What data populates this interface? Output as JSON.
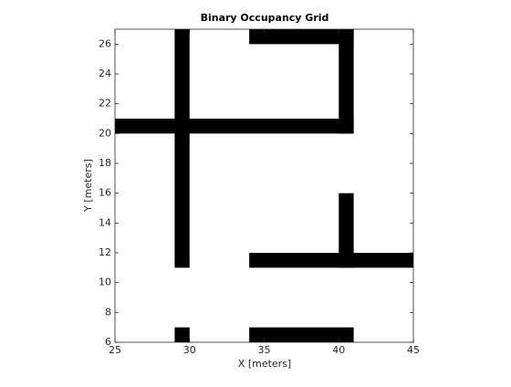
{
  "chart_data": {
    "type": "occupancy",
    "title": "Binary Occupancy Grid",
    "xlabel": "X [meters]",
    "ylabel": "Y [meters]",
    "xlim": [
      25,
      45
    ],
    "ylim": [
      6,
      27
    ],
    "xticks": [
      25,
      30,
      35,
      40,
      45
    ],
    "yticks": [
      6,
      8,
      10,
      12,
      14,
      16,
      18,
      20,
      22,
      24,
      26
    ],
    "color": "#000000",
    "occupied": [
      {
        "x": [
          29,
          30
        ],
        "y": [
          11,
          27
        ]
      },
      {
        "x": [
          25,
          41
        ],
        "y": [
          20,
          21
        ]
      },
      {
        "x": [
          34,
          41
        ],
        "y": [
          26,
          27
        ]
      },
      {
        "x": [
          40,
          41
        ],
        "y": [
          20,
          27
        ]
      },
      {
        "x": [
          40,
          41
        ],
        "y": [
          11,
          16
        ]
      },
      {
        "x": [
          34,
          45
        ],
        "y": [
          11,
          12
        ]
      },
      {
        "x": [
          34,
          41
        ],
        "y": [
          6,
          7
        ]
      },
      {
        "x": [
          29,
          30
        ],
        "y": [
          6,
          7
        ]
      }
    ]
  }
}
